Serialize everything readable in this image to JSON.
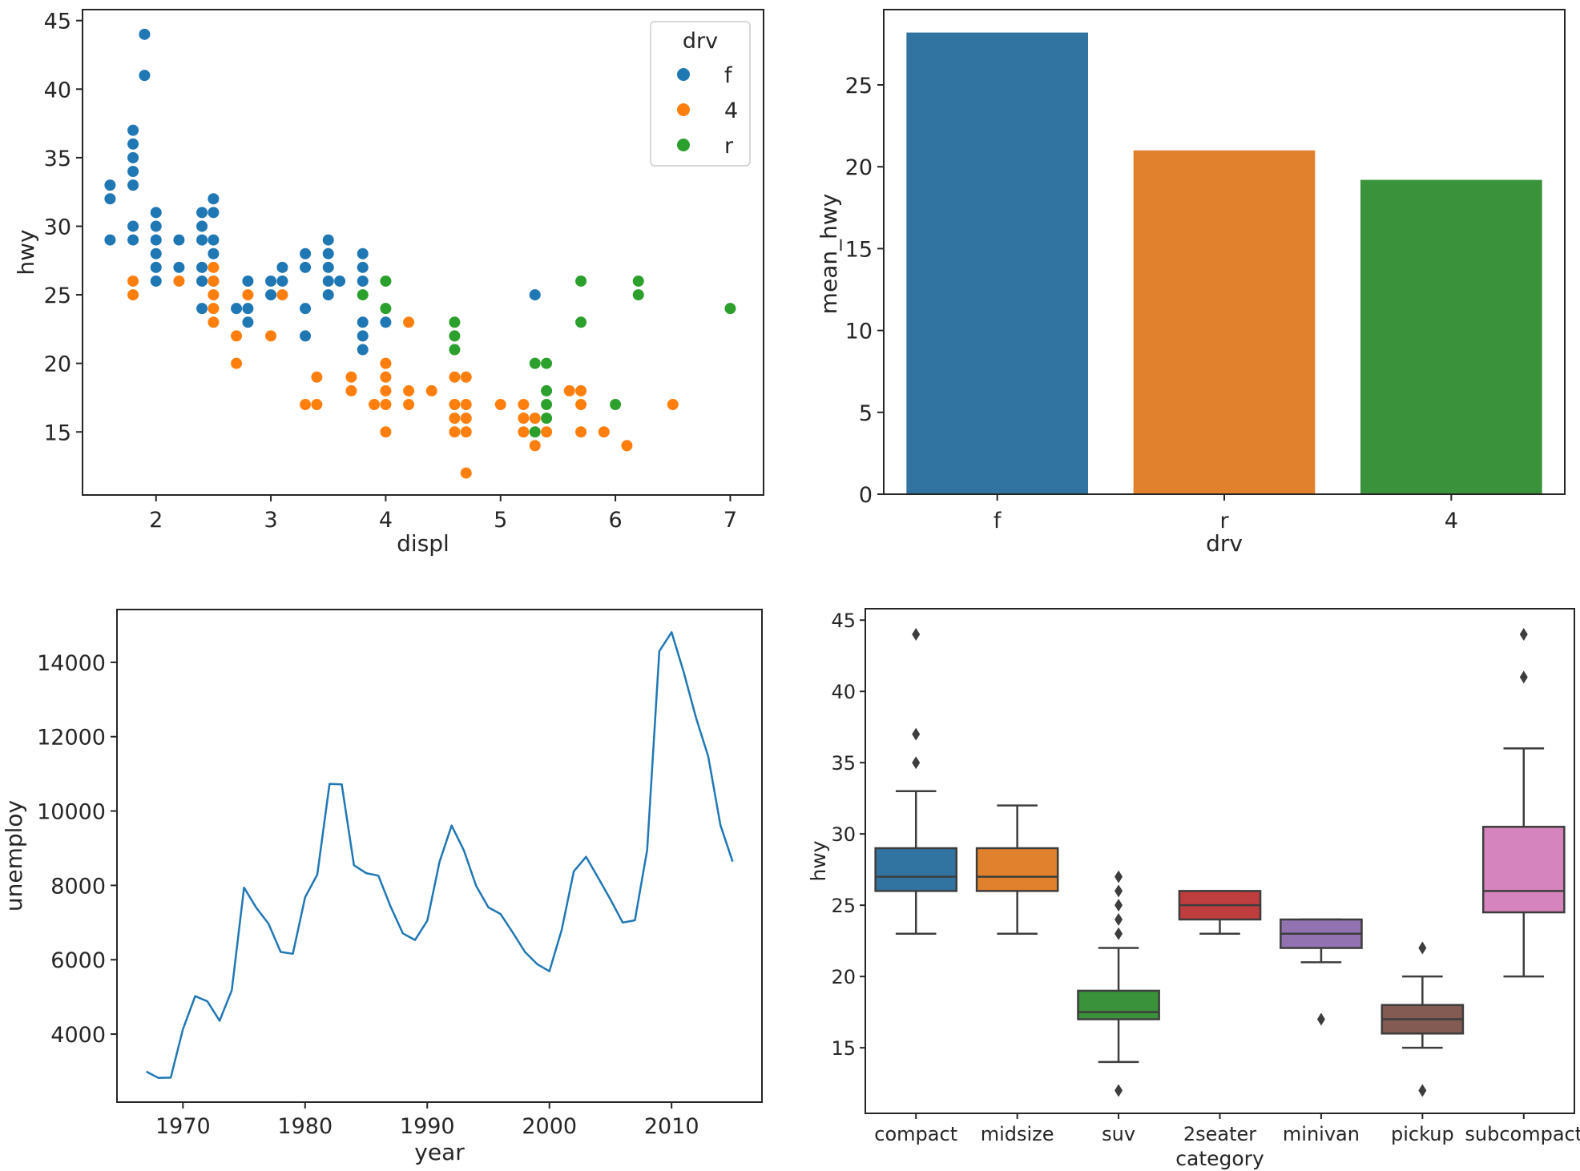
{
  "chart_data": [
    {
      "type": "scatter",
      "title": "",
      "xlabel": "displ",
      "ylabel": "hwy",
      "xlim": [
        1.36,
        7.29
      ],
      "ylim": [
        10.4,
        45.8
      ],
      "xticks": [
        2,
        3,
        4,
        5,
        6,
        7
      ],
      "yticks": [
        15,
        20,
        25,
        30,
        35,
        40,
        45
      ],
      "legend": {
        "title": "drv",
        "position": "top-right"
      },
      "series": [
        {
          "name": "f",
          "color": "#1f77b4",
          "points": [
            [
              1.6,
              33
            ],
            [
              1.6,
              32
            ],
            [
              1.6,
              29
            ],
            [
              1.8,
              37
            ],
            [
              1.8,
              36
            ],
            [
              1.8,
              35
            ],
            [
              1.8,
              34
            ],
            [
              1.8,
              33
            ],
            [
              1.8,
              30
            ],
            [
              1.8,
              29
            ],
            [
              1.9,
              44
            ],
            [
              1.9,
              41
            ],
            [
              2.0,
              31
            ],
            [
              2.0,
              30
            ],
            [
              2.0,
              29
            ],
            [
              2.0,
              28
            ],
            [
              2.0,
              27
            ],
            [
              2.0,
              26
            ],
            [
              2.2,
              29
            ],
            [
              2.2,
              27
            ],
            [
              2.4,
              31
            ],
            [
              2.4,
              30
            ],
            [
              2.4,
              29
            ],
            [
              2.4,
              27
            ],
            [
              2.4,
              26
            ],
            [
              2.4,
              24
            ],
            [
              2.5,
              32
            ],
            [
              2.5,
              31
            ],
            [
              2.5,
              29
            ],
            [
              2.5,
              28
            ],
            [
              2.5,
              26
            ],
            [
              2.7,
              24
            ],
            [
              2.8,
              26
            ],
            [
              2.8,
              24
            ],
            [
              2.8,
              23
            ],
            [
              3.0,
              26
            ],
            [
              3.0,
              25
            ],
            [
              3.1,
              27
            ],
            [
              3.1,
              26
            ],
            [
              3.3,
              28
            ],
            [
              3.3,
              27
            ],
            [
              3.3,
              24
            ],
            [
              3.3,
              22
            ],
            [
              3.5,
              29
            ],
            [
              3.5,
              28
            ],
            [
              3.5,
              27
            ],
            [
              3.5,
              26
            ],
            [
              3.5,
              25
            ],
            [
              3.6,
              26
            ],
            [
              3.8,
              28
            ],
            [
              3.8,
              27
            ],
            [
              3.8,
              26
            ],
            [
              3.8,
              23
            ],
            [
              3.8,
              22
            ],
            [
              3.8,
              21
            ],
            [
              4.0,
              23
            ],
            [
              5.3,
              25
            ]
          ]
        },
        {
          "name": "4",
          "color": "#ff7f0e",
          "points": [
            [
              1.8,
              26
            ],
            [
              1.8,
              25
            ],
            [
              2.2,
              26
            ],
            [
              2.5,
              27
            ],
            [
              2.5,
              26
            ],
            [
              2.5,
              25
            ],
            [
              2.5,
              24
            ],
            [
              2.5,
              23
            ],
            [
              2.7,
              22
            ],
            [
              2.7,
              20
            ],
            [
              2.8,
              25
            ],
            [
              3.0,
              22
            ],
            [
              3.1,
              25
            ],
            [
              3.3,
              17
            ],
            [
              3.4,
              19
            ],
            [
              3.4,
              17
            ],
            [
              3.7,
              19
            ],
            [
              3.7,
              18
            ],
            [
              3.9,
              17
            ],
            [
              4.0,
              20
            ],
            [
              4.0,
              19
            ],
            [
              4.0,
              18
            ],
            [
              4.0,
              17
            ],
            [
              4.0,
              15
            ],
            [
              4.2,
              23
            ],
            [
              4.2,
              18
            ],
            [
              4.2,
              17
            ],
            [
              4.4,
              18
            ],
            [
              4.6,
              19
            ],
            [
              4.6,
              17
            ],
            [
              4.6,
              16
            ],
            [
              4.6,
              15
            ],
            [
              4.7,
              19
            ],
            [
              4.7,
              17
            ],
            [
              4.7,
              16
            ],
            [
              4.7,
              15
            ],
            [
              4.7,
              12
            ],
            [
              5.0,
              17
            ],
            [
              5.2,
              17
            ],
            [
              5.2,
              16
            ],
            [
              5.2,
              15
            ],
            [
              5.3,
              16
            ],
            [
              5.3,
              14
            ],
            [
              5.4,
              15
            ],
            [
              5.6,
              18
            ],
            [
              5.7,
              18
            ],
            [
              5.7,
              17
            ],
            [
              5.7,
              15
            ],
            [
              5.9,
              15
            ],
            [
              6.1,
              14
            ],
            [
              6.5,
              17
            ]
          ]
        },
        {
          "name": "r",
          "color": "#2ca02c",
          "points": [
            [
              3.8,
              25
            ],
            [
              4.0,
              26
            ],
            [
              4.0,
              24
            ],
            [
              4.6,
              23
            ],
            [
              4.6,
              22
            ],
            [
              4.6,
              21
            ],
            [
              5.3,
              20
            ],
            [
              5.3,
              15
            ],
            [
              5.4,
              20
            ],
            [
              5.4,
              18
            ],
            [
              5.4,
              17
            ],
            [
              5.4,
              16
            ],
            [
              5.7,
              26
            ],
            [
              5.7,
              23
            ],
            [
              6.0,
              17
            ],
            [
              6.2,
              26
            ],
            [
              6.2,
              25
            ],
            [
              7.0,
              24
            ]
          ]
        }
      ]
    },
    {
      "type": "bar",
      "title": "",
      "xlabel": "drv",
      "ylabel": "mean_hwy",
      "categories": [
        "f",
        "r",
        "4"
      ],
      "values": [
        28.2,
        21.0,
        19.2
      ],
      "colors": [
        "#3274a1",
        "#e1812c",
        "#3a923a"
      ],
      "ylim": [
        0,
        29.6
      ],
      "yticks": [
        0,
        5,
        10,
        15,
        20,
        25
      ]
    },
    {
      "type": "line",
      "title": "",
      "xlabel": "year",
      "ylabel": "unemploy",
      "xlim": [
        1964.6,
        2017.4
      ],
      "ylim": [
        2170,
        15420
      ],
      "xticks": [
        1970,
        1980,
        1990,
        2000,
        2010
      ],
      "yticks": [
        4000,
        6000,
        8000,
        10000,
        12000,
        14000
      ],
      "color": "#1f77b4",
      "x": [
        1967,
        1968,
        1969,
        1970,
        1971,
        1972,
        1973,
        1974,
        1975,
        1976,
        1977,
        1978,
        1979,
        1980,
        1981,
        1982,
        1983,
        1984,
        1985,
        1986,
        1987,
        1988,
        1989,
        1990,
        1991,
        1992,
        1993,
        1994,
        1995,
        1996,
        1997,
        1998,
        1999,
        2000,
        2001,
        2002,
        2003,
        2004,
        2005,
        2006,
        2007,
        2008,
        2009,
        2010,
        2011,
        2012,
        2013,
        2014,
        2015
      ],
      "y": [
        2990,
        2820,
        2830,
        4130,
        5020,
        4880,
        4360,
        5180,
        7940,
        7400,
        6970,
        6210,
        6160,
        7680,
        8290,
        10730,
        10720,
        8540,
        8330,
        8260,
        7430,
        6710,
        6530,
        7050,
        8630,
        9610,
        8940,
        7990,
        7410,
        7230,
        6730,
        6210,
        5880,
        5690,
        6800,
        8380,
        8770,
        8200,
        7620,
        7000,
        7060,
        8950,
        14300,
        14810,
        13730,
        12510,
        11470,
        9620,
        8640
      ]
    },
    {
      "type": "box",
      "title": "",
      "xlabel": "category",
      "ylabel": "hwy",
      "ylim": [
        10.4,
        45.8
      ],
      "yticks": [
        15,
        20,
        25,
        30,
        35,
        40,
        45
      ],
      "boxes": [
        {
          "label": "compact",
          "color": "#3274a1",
          "whisker_low": 23,
          "q1": 26,
          "median": 27,
          "q3": 29,
          "whisker_high": 33,
          "outliers": [
            35,
            37,
            44
          ]
        },
        {
          "label": "midsize",
          "color": "#e1812c",
          "whisker_low": 23,
          "q1": 26,
          "median": 27,
          "q3": 29,
          "whisker_high": 32,
          "outliers": []
        },
        {
          "label": "suv",
          "color": "#3a923a",
          "whisker_low": 14,
          "q1": 17,
          "median": 17.5,
          "q3": 19,
          "whisker_high": 22,
          "outliers": [
            12,
            23,
            24,
            25,
            26,
            27
          ]
        },
        {
          "label": "2seater",
          "color": "#c03d3e",
          "whisker_low": 23,
          "q1": 24,
          "median": 25,
          "q3": 26,
          "whisker_high": 26,
          "outliers": []
        },
        {
          "label": "minivan",
          "color": "#9372b2",
          "whisker_low": 21,
          "q1": 22,
          "median": 23,
          "q3": 24,
          "whisker_high": 24,
          "outliers": [
            17
          ]
        },
        {
          "label": "pickup",
          "color": "#845b53",
          "whisker_low": 15,
          "q1": 16,
          "median": 17,
          "q3": 18,
          "whisker_high": 20,
          "outliers": [
            12,
            22
          ]
        },
        {
          "label": "subcompact",
          "color": "#d684bd",
          "whisker_low": 20,
          "q1": 24.5,
          "median": 26,
          "q3": 30.5,
          "whisker_high": 36,
          "outliers": [
            41,
            44
          ]
        }
      ]
    }
  ]
}
